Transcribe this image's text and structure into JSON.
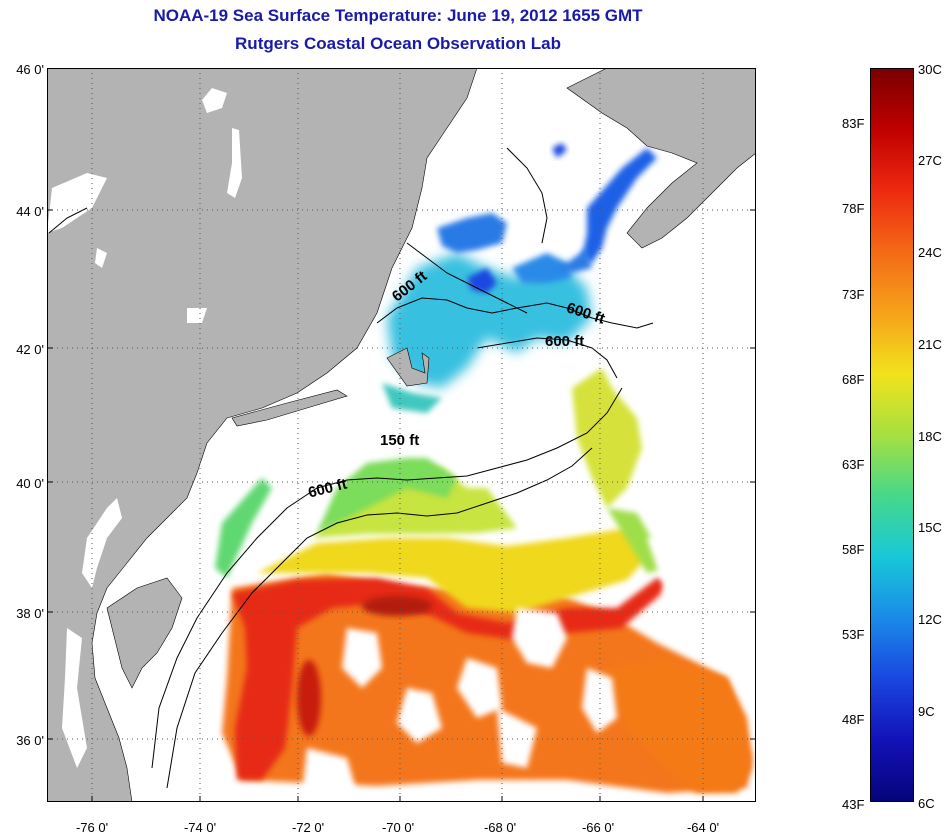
{
  "title": {
    "line1": "NOAA-19 Sea Surface Temperature:  June 19, 2012 1655 GMT",
    "line2": "Rutgers Coastal Ocean Observation Lab"
  },
  "axes": {
    "lat_labels": [
      "46 0'",
      "44 0'",
      "42 0'",
      "40 0'",
      "38 0'",
      "36 0'"
    ],
    "lon_labels": [
      "-76 0'",
      "-74 0'",
      "-72 0'",
      "-70 0'",
      "-68 0'",
      "-66 0'",
      "-64 0'"
    ]
  },
  "contour_labels": {
    "c1": "600 ft",
    "c2": "600 ft",
    "c3": "600 ft",
    "c4": "150 ft",
    "c5": "600 ft"
  },
  "colorbar": {
    "fahrenheit": [
      "83F",
      "78F",
      "73F",
      "68F",
      "63F",
      "58F",
      "53F",
      "48F",
      "43F"
    ],
    "celsius": [
      "30C",
      "27C",
      "24C",
      "21C",
      "18C",
      "15C",
      "12C",
      "9C",
      "6C"
    ],
    "colors": [
      "#7a0000",
      "#c00000",
      "#ee2a10",
      "#f46a16",
      "#f6a21a",
      "#f2e21c",
      "#a6e040",
      "#46d88a",
      "#18c8d8",
      "#1a8ae8",
      "#1a46e0",
      "#1212b8",
      "#06047a"
    ]
  },
  "colors": {
    "land": "#b3b3b3",
    "water_nodata": "#ffffff",
    "title": "#1a1aa8"
  }
}
